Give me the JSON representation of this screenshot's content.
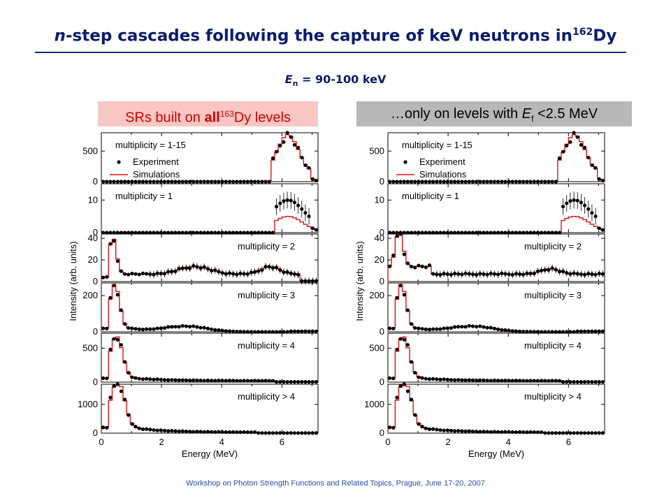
{
  "header": {
    "title_italic": "n",
    "title_main": "-step cascades following the capture of keV neutrons in",
    "title_sup": "162",
    "title_end": "Dy",
    "energy_symbol": "E",
    "energy_sub": "n",
    "energy_value": " = 90-100 keV"
  },
  "left_box": {
    "text_a": "SRs built on ",
    "text_bold": "all",
    "text_sup": "163",
    "text_b": "Dy  levels"
  },
  "right_box": {
    "text_a": "…only on levels with ",
    "text_sym": "E",
    "text_sub": "f",
    "text_b": " <2.5 MeV"
  },
  "footer": "Workshop on Photon Strength Functions and Related Topics, Prague, June 17-20, 2007",
  "colors": {
    "simulation": "#e01010",
    "experiment": "#000000",
    "title": "#0a1c6e"
  },
  "chart_data": [
    {
      "type": "line",
      "xlabel": "Energy (MeV)",
      "ylabel": "Intensity (arb. units)",
      "xlim": [
        0,
        7.2
      ],
      "x_ticks": [
        "0",
        "2",
        "4",
        "6"
      ],
      "legend": [
        "Experiment",
        "Simulations"
      ],
      "panels": [
        {
          "label": "multiplicity = 1-15",
          "yticks": [
            0,
            500
          ],
          "ylim": [
            0,
            800
          ],
          "shape": "m15"
        },
        {
          "label": "multiplicity = 1",
          "yticks": [
            0,
            10
          ],
          "ylim": [
            0,
            15
          ],
          "shape": "m1"
        },
        {
          "label": "multiplicity = 2",
          "yticks": [
            0,
            20,
            40
          ],
          "ylim": [
            0,
            44
          ],
          "shape": "m2"
        },
        {
          "label": "multiplicity = 3",
          "yticks": [
            0,
            200
          ],
          "ylim": [
            0,
            270
          ],
          "shape": "m3"
        },
        {
          "label": "multiplicity = 4",
          "yticks": [
            0,
            500
          ],
          "ylim": [
            0,
            720
          ],
          "shape": "m4"
        },
        {
          "label": "multiplicity > 4",
          "yticks": [
            0,
            1000
          ],
          "ylim": [
            0,
            1700
          ],
          "shape": "m5"
        }
      ]
    },
    {
      "type": "line",
      "xlabel": "Energy (MeV)",
      "ylabel": "Intensity (arb. units)",
      "xlim": [
        0,
        7.2
      ],
      "x_ticks": [
        "0",
        "2",
        "4",
        "6"
      ],
      "legend": [
        "Experiment",
        "Simulations"
      ],
      "panels": [
        {
          "label": "multiplicity = 1-15",
          "yticks": [
            0,
            500
          ],
          "ylim": [
            0,
            800
          ],
          "shape": "m15"
        },
        {
          "label": "multiplicity = 1",
          "yticks": [
            0,
            10
          ],
          "ylim": [
            0,
            15
          ],
          "shape": "m1"
        },
        {
          "label": "multiplicity = 2",
          "yticks": [
            0,
            20,
            40
          ],
          "ylim": [
            0,
            44
          ],
          "shape": "m2"
        },
        {
          "label": "multiplicity = 3",
          "yticks": [
            0,
            200
          ],
          "ylim": [
            0,
            270
          ],
          "shape": "m3"
        },
        {
          "label": "multiplicity = 4",
          "yticks": [
            0,
            500
          ],
          "ylim": [
            0,
            720
          ],
          "shape": "m4"
        },
        {
          "label": "multiplicity > 4",
          "yticks": [
            0,
            1000
          ],
          "ylim": [
            0,
            1700
          ],
          "shape": "m5"
        }
      ]
    }
  ]
}
